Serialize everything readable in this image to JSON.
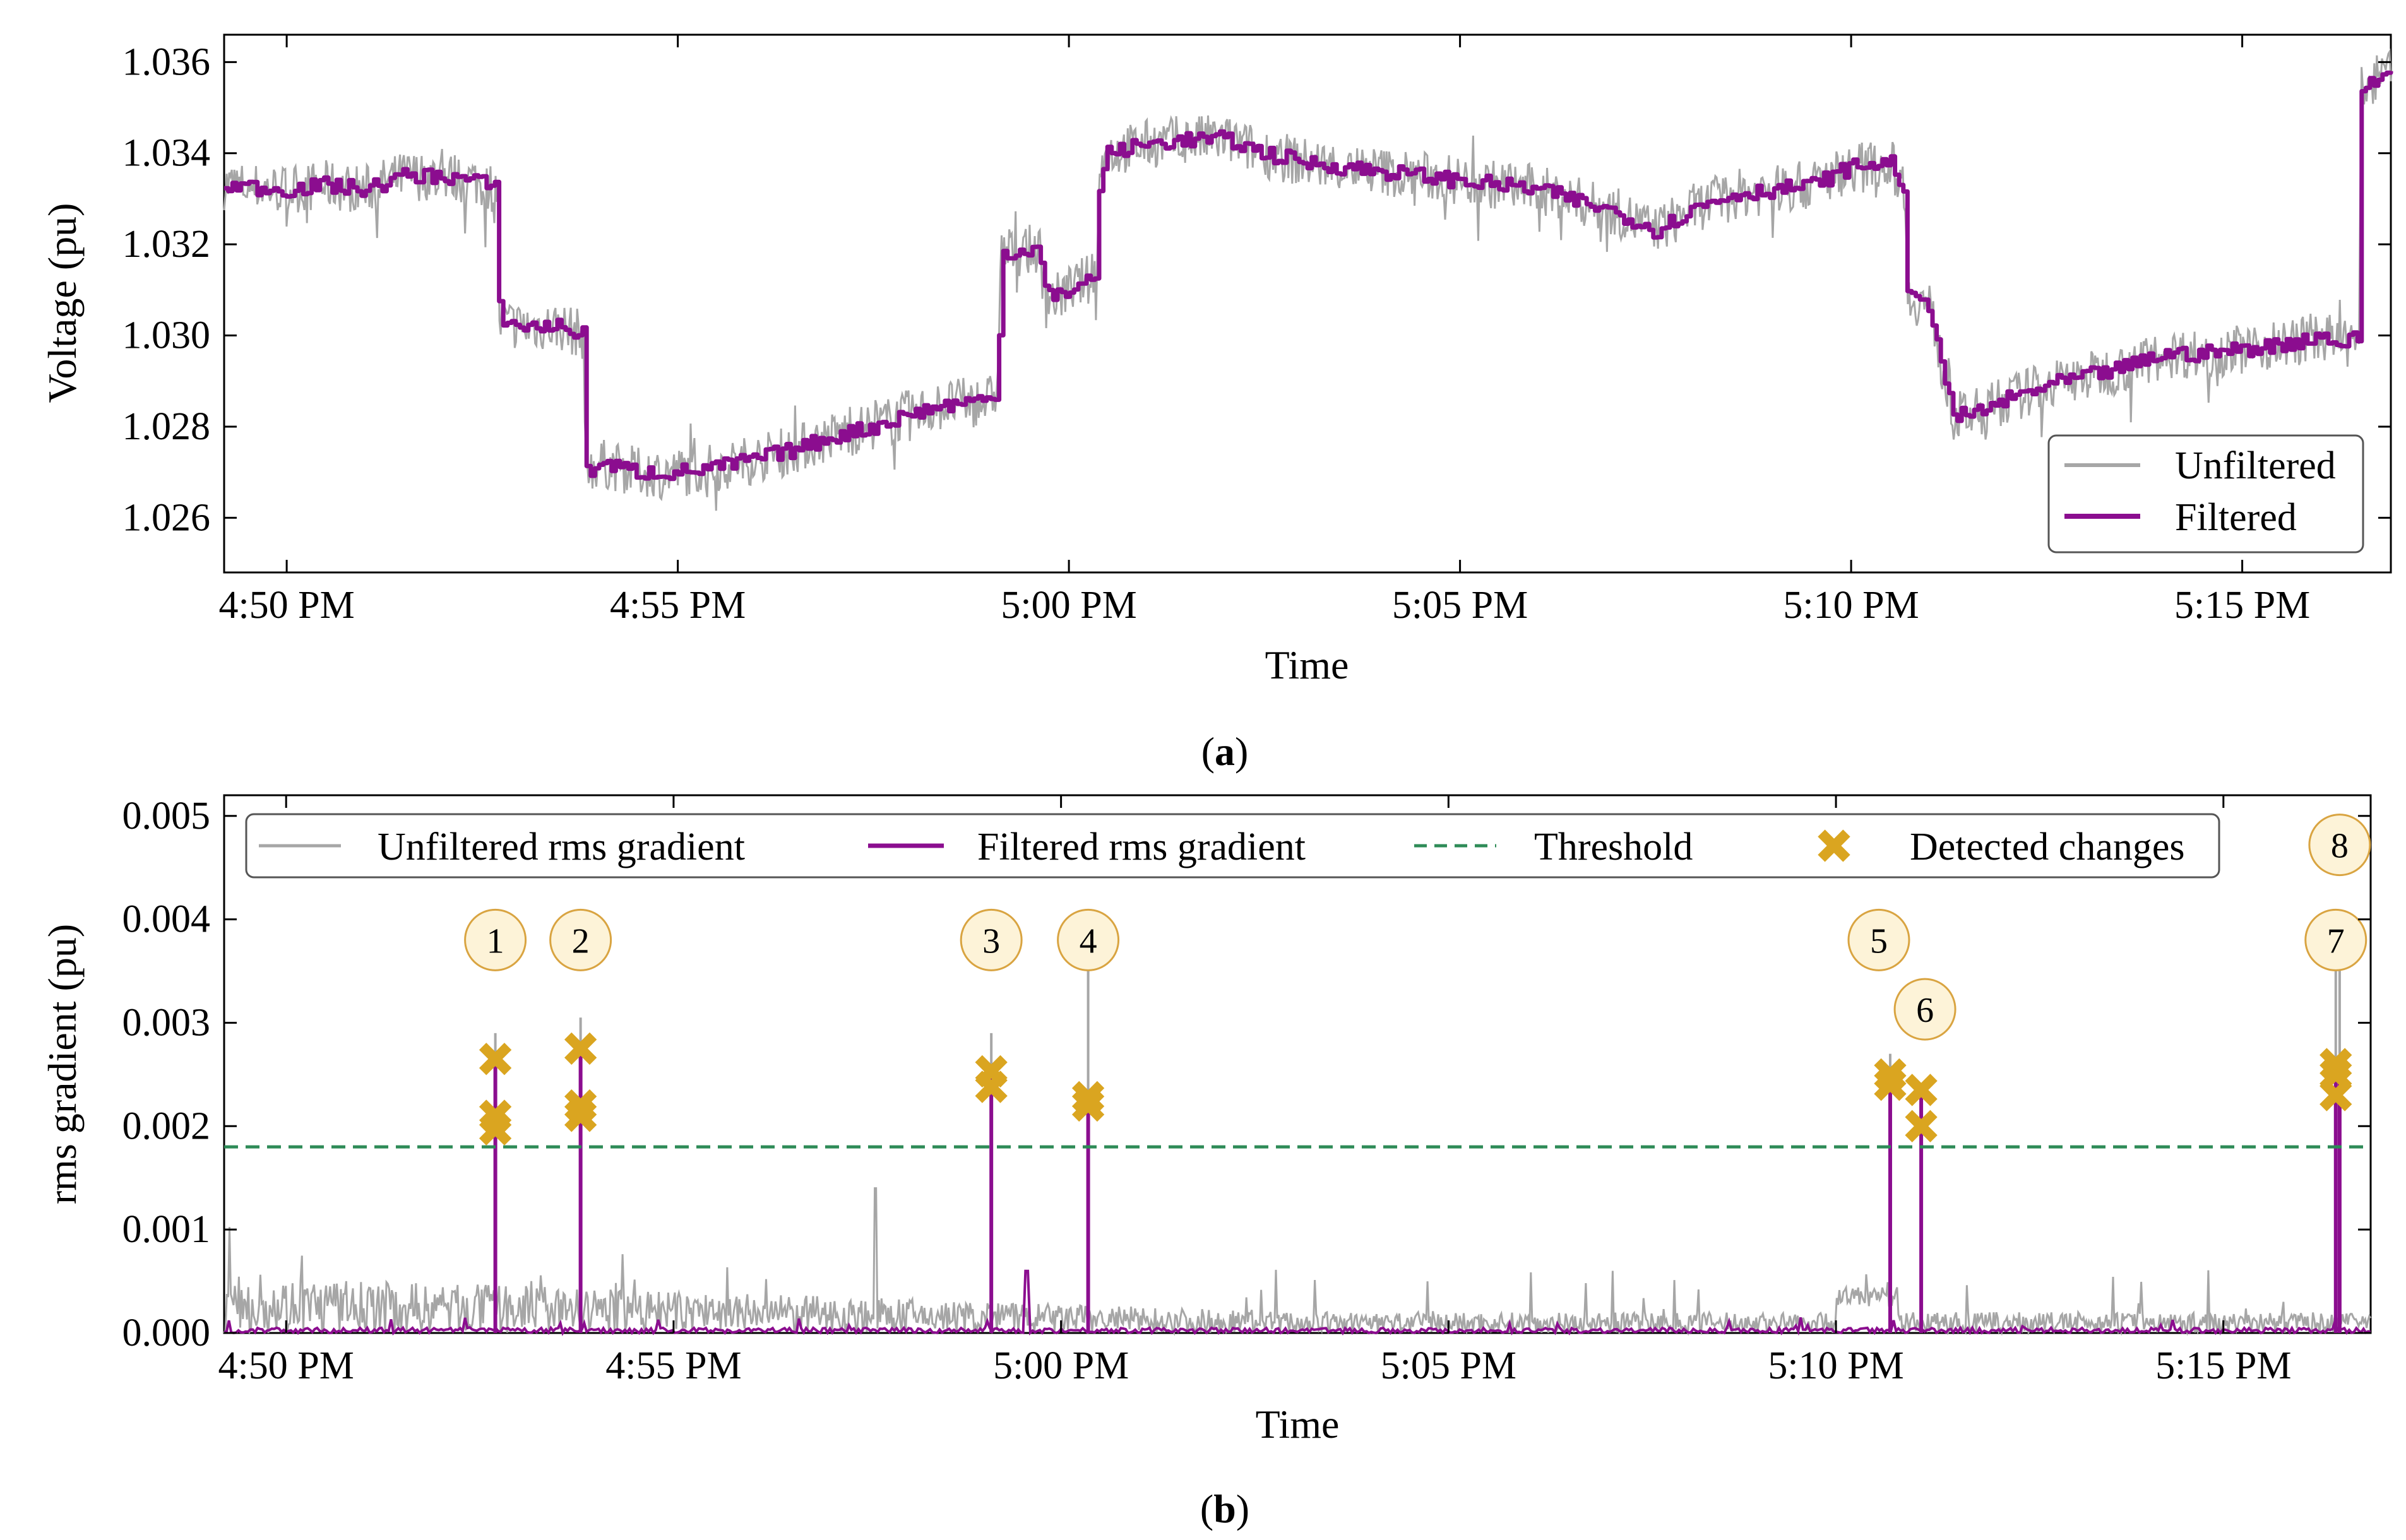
{
  "figure": {
    "caption_a_open": "(",
    "caption_a_letter": "a",
    "caption_a_close": ")",
    "caption_b_open": "(",
    "caption_b_letter": "b",
    "caption_b_close": ")"
  },
  "colors": {
    "unfiltered": "#a6a6a6",
    "filtered": "#8b0d8f",
    "threshold": "#2e8b57",
    "detected": "#daa520",
    "badge_fill": "#fdf3d8",
    "badge_stroke": "#d9a441"
  },
  "chart_data": [
    {
      "id": "a",
      "type": "line",
      "xlabel": "Time",
      "ylabel": "Voltage (pu)",
      "xlim": [
        -0.8,
        26.9
      ],
      "ylim": [
        1.0248,
        1.0366
      ],
      "x_ticks": [
        0,
        5,
        10,
        15,
        20,
        25
      ],
      "x_tick_labels": [
        "4:50 PM",
        "4:55 PM",
        "5:00 PM",
        "5:05 PM",
        "5:10 PM",
        "5:15 PM"
      ],
      "y_ticks": [
        1.026,
        1.028,
        1.03,
        1.032,
        1.034,
        1.036
      ],
      "y_tick_labels": [
        "1.026",
        "1.028",
        "1.030",
        "1.032",
        "1.034",
        "1.036"
      ],
      "x_unit": "minutes after 4:50 PM",
      "legend": {
        "position": "lower-right",
        "entries": [
          "Unfiltered",
          "Filtered"
        ]
      },
      "series": [
        {
          "name": "Filtered",
          "x": [
            -0.8,
            0.0,
            0.5,
            1.0,
            1.5,
            2.0,
            2.4,
            2.7,
            2.72,
            3.0,
            3.5,
            3.8,
            3.82,
            4.0,
            4.5,
            5.0,
            5.5,
            6.0,
            6.5,
            7.0,
            7.5,
            8.0,
            8.5,
            9.0,
            9.1,
            9.12,
            9.6,
            9.7,
            9.8,
            10.2,
            10.35,
            10.4,
            10.5,
            11.0,
            11.5,
            12.0,
            12.5,
            13.0,
            14.0,
            15.0,
            16.0,
            17.0,
            17.5,
            18.0,
            18.5,
            19.0,
            19.5,
            20.0,
            20.5,
            20.7,
            20.72,
            21.0,
            21.2,
            21.3,
            21.6,
            22.0,
            22.5,
            23.0,
            23.5,
            24.0,
            24.5,
            25.0,
            25.5,
            26.0,
            26.3,
            26.5,
            26.52,
            26.9
          ],
          "values": [
            1.0333,
            1.0332,
            1.0333,
            1.0332,
            1.0335,
            1.0335,
            1.0334,
            1.0332,
            1.0303,
            1.0302,
            1.0302,
            1.03,
            1.027,
            1.0272,
            1.027,
            1.027,
            1.0271,
            1.0273,
            1.0275,
            1.0278,
            1.028,
            1.0283,
            1.0285,
            1.0286,
            1.0289,
            1.0318,
            1.0319,
            1.031,
            1.0308,
            1.0312,
            1.0313,
            1.0337,
            1.034,
            1.0342,
            1.0343,
            1.0343,
            1.034,
            1.0338,
            1.0336,
            1.0334,
            1.0332,
            1.0327,
            1.0323,
            1.0328,
            1.0331,
            1.0332,
            1.0333,
            1.0337,
            1.0338,
            1.0332,
            1.0308,
            1.0307,
            1.029,
            1.0282,
            1.0283,
            1.0286,
            1.0289,
            1.0291,
            1.0293,
            1.0296,
            1.0296,
            1.0297,
            1.0298,
            1.03,
            1.0298,
            1.03,
            1.0354,
            1.0358
          ]
        },
        {
          "name": "Unfiltered",
          "x": [],
          "values": []
        }
      ]
    },
    {
      "id": "b",
      "type": "line",
      "xlabel": "Time",
      "ylabel": "rms gradient (pu)",
      "xlim": [
        -0.8,
        26.9
      ],
      "ylim": [
        0.0,
        0.0052
      ],
      "x_ticks": [
        0,
        5,
        10,
        15,
        20,
        25
      ],
      "x_tick_labels": [
        "4:50 PM",
        "4:55 PM",
        "5:00 PM",
        "5:05 PM",
        "5:10 PM",
        "5:15 PM"
      ],
      "y_ticks": [
        0.0,
        0.001,
        0.002,
        0.003,
        0.004,
        0.005
      ],
      "y_tick_labels": [
        "0.000",
        "0.001",
        "0.002",
        "0.003",
        "0.004",
        "0.005"
      ],
      "x_unit": "minutes after 4:50 PM",
      "legend": {
        "position": "top",
        "entries": [
          "Unfiltered rms gradient",
          "Filtered rms gradient",
          "Threshold",
          "Detected changes"
        ]
      },
      "threshold": 0.0018,
      "spikes": [
        {
          "label": "1",
          "x": 2.7,
          "filtered_peak": 0.0027,
          "unfiltered_peak": 0.0029,
          "detected": [
            0.00265,
            0.0021,
            0.00197
          ]
        },
        {
          "label": "2",
          "x": 3.8,
          "filtered_peak": 0.0027,
          "unfiltered_peak": 0.00305,
          "detected": [
            0.00275,
            0.0022,
            0.0021
          ]
        },
        {
          "label": "3",
          "x": 9.1,
          "filtered_peak": 0.0025,
          "unfiltered_peak": 0.0029,
          "detected": [
            0.00253,
            0.00238
          ]
        },
        {
          "label": "4",
          "x": 10.35,
          "filtered_peak": 0.0023,
          "unfiltered_peak": 0.0037,
          "detected": [
            0.00228,
            0.0022
          ]
        },
        {
          "label": "5",
          "x": 20.7,
          "filtered_peak": 0.0025,
          "unfiltered_peak": 0.0027,
          "detected": [
            0.0025,
            0.0024
          ]
        },
        {
          "label": "6",
          "x": 21.1,
          "filtered_peak": 0.0024,
          "unfiltered_peak": 0.0024,
          "detected": [
            0.00235,
            0.002
          ]
        },
        {
          "label": "7",
          "x": 26.45,
          "filtered_peak": 0.0026,
          "unfiltered_peak": 0.0038,
          "detected": [
            0.0026,
            0.0025,
            0.0023
          ]
        },
        {
          "label": "8",
          "x": 26.5,
          "filtered_peak": 0.0026,
          "unfiltered_peak": 0.0038,
          "detected": []
        }
      ],
      "badge_levels": {
        "1": 0.0038,
        "2": 0.0038,
        "3": 0.0038,
        "4": 0.0038,
        "5": 0.0038,
        "6": 0.00313,
        "7": 0.0038,
        "8": 0.00472
      }
    }
  ]
}
